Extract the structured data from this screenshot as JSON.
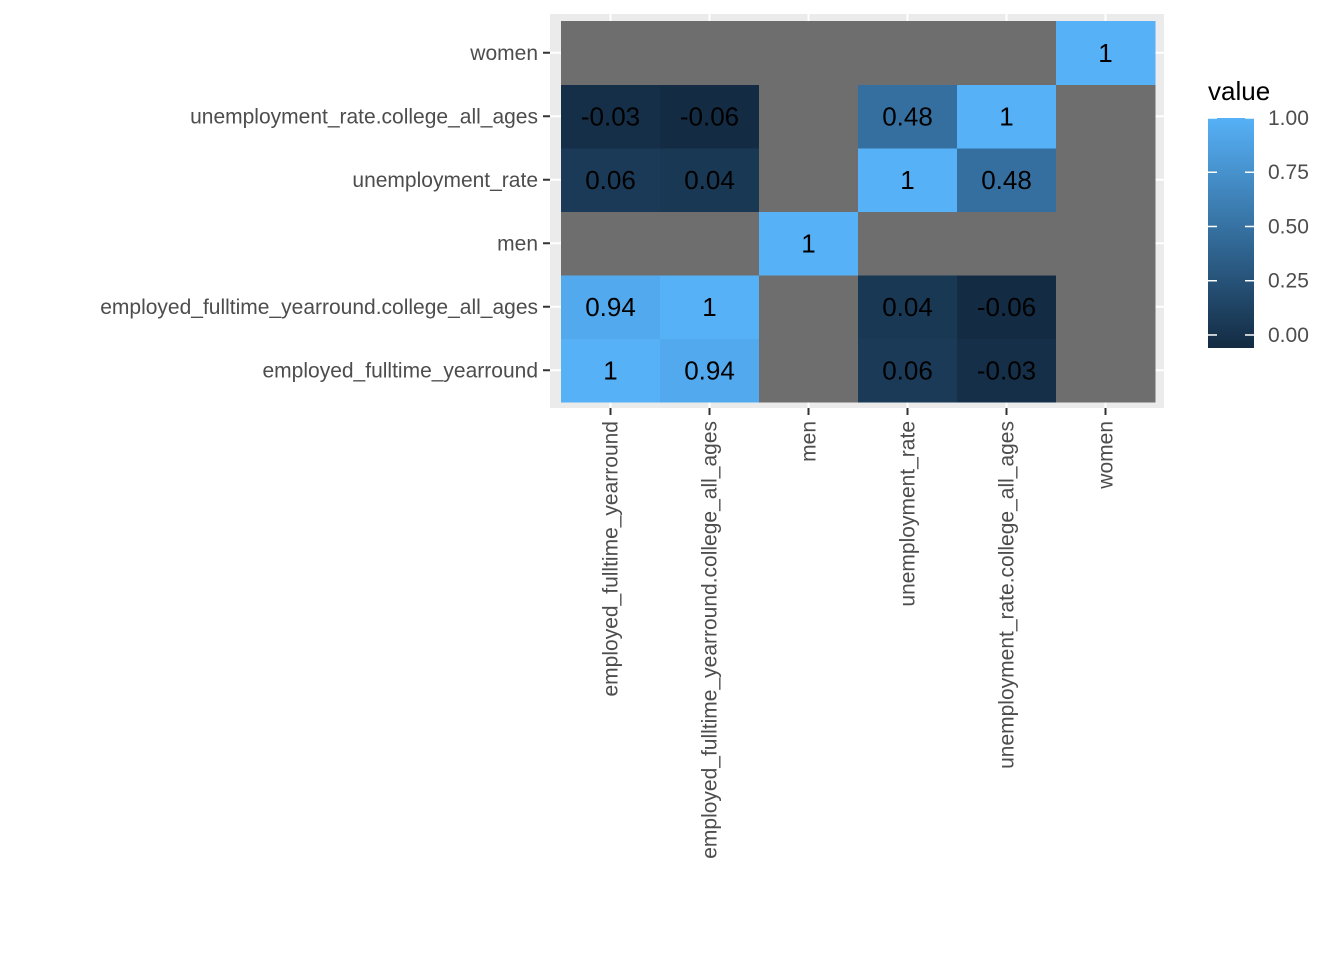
{
  "chart_data": {
    "type": "heatmap",
    "title": "",
    "xlabel": "",
    "ylabel": "",
    "x_categories": [
      "employed_fulltime_yearround",
      "employed_fulltime_yearround.college_all_ages",
      "men",
      "unemployment_rate",
      "unemployment_rate.college_all_ages",
      "women"
    ],
    "y_categories": [
      "employed_fulltime_yearround",
      "employed_fulltime_yearround.college_all_ages",
      "men",
      "unemployment_rate",
      "unemployment_rate.college_all_ages",
      "women"
    ],
    "values": [
      [
        1,
        0.94,
        null,
        0.06,
        -0.03,
        null
      ],
      [
        0.94,
        1,
        null,
        0.04,
        -0.06,
        null
      ],
      [
        null,
        null,
        1,
        null,
        null,
        null
      ],
      [
        0.06,
        0.04,
        null,
        1,
        0.48,
        null
      ],
      [
        -0.03,
        -0.06,
        null,
        0.48,
        1,
        null
      ],
      [
        null,
        null,
        null,
        null,
        null,
        1
      ]
    ],
    "value_labels": [
      [
        "1",
        "0.94",
        "",
        "0.06",
        "-0.03",
        ""
      ],
      [
        "0.94",
        "1",
        "",
        "0.04",
        "-0.06",
        ""
      ],
      [
        "",
        "",
        "1",
        "",
        "",
        ""
      ],
      [
        "0.06",
        "0.04",
        "",
        "1",
        "0.48",
        ""
      ],
      [
        "-0.03",
        "-0.06",
        "",
        "0.48",
        "1",
        ""
      ],
      [
        "",
        "",
        "",
        "",
        "",
        "1"
      ]
    ],
    "legend": {
      "title": "value",
      "position": "right",
      "range": [
        -0.06,
        1
      ],
      "ticks": [
        1.0,
        0.75,
        0.5,
        0.25,
        0.0
      ],
      "tick_labels": [
        "1.00",
        "0.75",
        "0.50",
        "0.25",
        "0.00"
      ]
    },
    "colors": {
      "low": "#132B43",
      "high": "#56B1F7",
      "na": "#6e6e6e",
      "panel": "#ebebeb",
      "grid": "#ffffff"
    },
    "grid": true
  }
}
